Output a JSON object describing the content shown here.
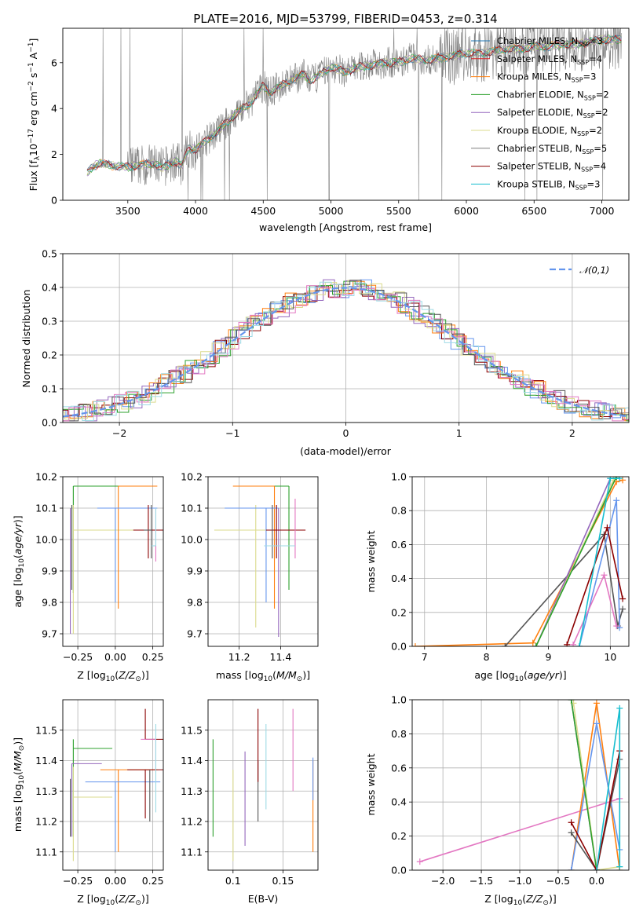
{
  "chart_data": [
    {
      "id": "spectrum",
      "type": "line",
      "title": "PLATE=2016, MJD=53799, FIBERID=0453, z=0.314",
      "xlabel": "wavelength [Angstrom, rest frame]",
      "ylabel": "Flux [f_λ 10^-17 erg cm^-2 s^-1 A^-1]",
      "xlim": [
        3020,
        7200
      ],
      "ylim": [
        0,
        7.5
      ],
      "xticks": [
        3500,
        4000,
        4500,
        5000,
        5500,
        6000,
        6500,
        7000
      ],
      "yticks": [
        0,
        2,
        4,
        6
      ],
      "grid": false,
      "legend_position": "top-right",
      "data_color": "#808080",
      "series": [
        {
          "name": "Chabrier MILES, N_SSP=3",
          "color": "#1f77b4"
        },
        {
          "name": "Salpeter MILES, N_SSP=4",
          "color": "#d62728"
        },
        {
          "name": "Kroupa MILES, N_SSP=3",
          "color": "#ff7f0e"
        },
        {
          "name": "Chabrier ELODIE, N_SSP=2",
          "color": "#2ca02c"
        },
        {
          "name": "Salpeter ELODIE, N_SSP=2",
          "color": "#9467bd"
        },
        {
          "name": "Kroupa ELODIE, N_SSP=2",
          "color": "#dbdb8d"
        },
        {
          "name": "Chabrier STELIB, N_SSP=5",
          "color": "#7f7f7f"
        },
        {
          "name": "Salpeter STELIB, N_SSP=4",
          "color": "#8b0000"
        },
        {
          "name": "Kroupa STELIB, N_SSP=3",
          "color": "#17becf"
        }
      ],
      "model_knots": {
        "x": [
          3200,
          3250,
          3300,
          3400,
          3500,
          3600,
          3700,
          3750,
          3850,
          3900,
          3950,
          4000,
          4100,
          4200,
          4300,
          4400,
          4500,
          4550,
          4600,
          4700,
          4800,
          4850,
          4900,
          5000,
          5100,
          5200,
          5300,
          5400,
          5500,
          5600,
          5700,
          5800,
          5900,
          6000,
          6100,
          6200,
          6300,
          6400,
          6500,
          6600,
          6700,
          6800,
          6900,
          7000
        ],
        "y": [
          1.2,
          1.5,
          1.6,
          1.5,
          1.45,
          1.55,
          1.6,
          1.4,
          1.7,
          1.5,
          2.3,
          2.2,
          2.7,
          3.2,
          3.8,
          4.2,
          5.0,
          4.7,
          4.9,
          5.2,
          5.5,
          5.2,
          5.4,
          5.8,
          5.6,
          5.8,
          5.9,
          6.0,
          6.0,
          6.2,
          6.1,
          6.2,
          6.3,
          6.4,
          6.4,
          6.5,
          6.6,
          6.6,
          6.7,
          6.7,
          6.8,
          6.8,
          6.9,
          7.0
        ]
      }
    },
    {
      "id": "residuals",
      "type": "histogram",
      "xlabel": "(data-model)/error",
      "ylabel": "Normed distribution",
      "xlim": [
        -2.5,
        2.5
      ],
      "ylim": [
        0,
        0.5
      ],
      "xticks": [
        -2,
        -1,
        0,
        1,
        2
      ],
      "yticks": [
        0.0,
        0.1,
        0.2,
        0.3,
        0.4,
        0.5
      ],
      "grid": true,
      "legend_position": "top-right",
      "reference_curve": {
        "name": "𝒩(0,1)",
        "color": "#6495ed",
        "style": "dashed"
      },
      "bin_width": 0.1
    },
    {
      "id": "age-vs-Z",
      "type": "scatter",
      "xlabel": "Z [log10(Z/Z⊙)]",
      "ylabel": "age [log10(age/yr)]",
      "xlim": [
        -0.35,
        0.32
      ],
      "ylim": [
        9.66,
        10.2
      ],
      "xticks": [
        -0.25,
        0.0,
        0.25
      ],
      "xticklabels": [
        "−0.25",
        "0.00",
        "0.25"
      ],
      "yticks": [
        9.7,
        9.8,
        9.9,
        10.0,
        10.1,
        10.2
      ],
      "grid": true,
      "points": [
        {
          "x": -0.28,
          "y": 10.17,
          "xerr": [
            0.0,
            0.5
          ],
          "yerr": [
            0.34,
            0.0
          ],
          "color": "#2ca02c"
        },
        {
          "x": -0.3,
          "y": 10.1,
          "xerr": [
            0.0,
            0.0
          ],
          "yerr": [
            0.4,
            0.0
          ],
          "color": "#9467bd"
        },
        {
          "x": -0.28,
          "y": 10.03,
          "xerr": [
            0.0,
            0.6
          ],
          "yerr": [
            0.33,
            0.08
          ],
          "color": "#dbdb8d"
        },
        {
          "x": -0.29,
          "y": 10.03,
          "xerr": [
            0.0,
            0.0
          ],
          "yerr": [
            0.19,
            0.08
          ],
          "color": "#555555"
        },
        {
          "x": 0.02,
          "y": 10.17,
          "xerr": [
            0.0,
            0.26
          ],
          "yerr": [
            0.39,
            0.0
          ],
          "color": "#ff7f0e"
        },
        {
          "x": 0.0,
          "y": 10.1,
          "xerr": [
            0.12,
            0.28
          ],
          "yerr": [
            0.3,
            0.0
          ],
          "color": "#6495ed"
        },
        {
          "x": 0.22,
          "y": 10.03,
          "xerr": [
            0.1,
            0.12
          ],
          "yerr": [
            0.09,
            0.08
          ],
          "color": "#8b0000"
        },
        {
          "x": 0.24,
          "y": 10.03,
          "xerr": [
            0.05,
            0.0
          ],
          "yerr": [
            0.09,
            0.08
          ],
          "color": "#555555"
        },
        {
          "x": 0.27,
          "y": 9.98,
          "xerr": [
            0.0,
            0.0
          ],
          "yerr": [
            0.05,
            0.12
          ],
          "color": "#e377c2"
        },
        {
          "x": 0.27,
          "y": 9.98,
          "xerr": [
            0.03,
            0.0
          ],
          "yerr": [
            0.0,
            0.12
          ],
          "color": "#9edae5"
        }
      ]
    },
    {
      "id": "age-vs-mass",
      "type": "scatter",
      "xlabel": "mass [log10(M/M⊙)]",
      "ylabel": "",
      "xlim": [
        11.05,
        11.58
      ],
      "ylim": [
        9.66,
        10.2
      ],
      "xticks": [
        11.2,
        11.4
      ],
      "yticks": [
        9.7,
        9.8,
        9.9,
        10.0,
        10.1,
        10.2
      ],
      "grid": true,
      "points": [
        {
          "x": 11.44,
          "y": 10.17,
          "xerr": [
            0.15,
            0.0
          ],
          "yerr": [
            0.33,
            0.0
          ],
          "color": "#2ca02c"
        },
        {
          "x": 11.39,
          "y": 10.1,
          "xerr": [
            0.0,
            0.0
          ],
          "yerr": [
            0.41,
            0.0
          ],
          "color": "#9467bd"
        },
        {
          "x": 11.28,
          "y": 10.03,
          "xerr": [
            0.2,
            0.1
          ],
          "yerr": [
            0.31,
            0.08
          ],
          "color": "#dbdb8d"
        },
        {
          "x": 11.37,
          "y": 10.17,
          "xerr": [
            0.2,
            0.0
          ],
          "yerr": [
            0.39,
            0.0
          ],
          "color": "#ff7f0e"
        },
        {
          "x": 11.33,
          "y": 10.1,
          "xerr": [
            0.2,
            0.06
          ],
          "yerr": [
            0.3,
            0.0
          ],
          "color": "#6495ed"
        },
        {
          "x": 11.38,
          "y": 10.03,
          "xerr": [
            0.05,
            0.14
          ],
          "yerr": [
            0.09,
            0.08
          ],
          "color": "#8b0000"
        },
        {
          "x": 11.36,
          "y": 10.03,
          "xerr": [
            0.0,
            0.0
          ],
          "yerr": [
            0.09,
            0.08
          ],
          "color": "#555555"
        },
        {
          "x": 11.47,
          "y": 10.0,
          "xerr": [
            0.0,
            0.0
          ],
          "yerr": [
            0.06,
            0.13
          ],
          "color": "#e377c2"
        },
        {
          "x": 11.4,
          "y": 9.98,
          "xerr": [
            0.08,
            0.07
          ],
          "yerr": [
            0.0,
            0.0
          ],
          "color": "#9edae5"
        }
      ]
    },
    {
      "id": "weight-vs-age",
      "type": "line",
      "xlabel": "age [log10(age/yr)]",
      "ylabel": "mass weight",
      "xlim": [
        6.8,
        10.3
      ],
      "ylim": [
        0,
        1.0
      ],
      "xticks": [
        7,
        8,
        9,
        10
      ],
      "yticks": [
        0.0,
        0.2,
        0.4,
        0.6,
        0.8,
        1.0
      ],
      "grid": true,
      "series": [
        {
          "color": "#ff7f0e",
          "x": [
            6.85,
            8.75,
            10.1,
            10.2
          ],
          "y": [
            0.0,
            0.02,
            0.97,
            0.98
          ]
        },
        {
          "color": "#555555",
          "x": [
            8.3,
            9.9,
            10.12,
            10.2
          ],
          "y": [
            0.0,
            0.66,
            0.12,
            0.22
          ]
        },
        {
          "color": "#9467bd",
          "x": [
            8.8,
            10.0
          ],
          "y": [
            0.0,
            0.99
          ]
        },
        {
          "color": "#dbdb8d",
          "x": [
            8.8,
            10.05
          ],
          "y": [
            0.0,
            0.98
          ]
        },
        {
          "color": "#2ca02c",
          "x": [
            8.8,
            10.1
          ],
          "y": [
            0.0,
            1.0
          ]
        },
        {
          "color": "#6495ed",
          "x": [
            9.5,
            10.1,
            10.15
          ],
          "y": [
            0.0,
            0.86,
            0.11
          ]
        },
        {
          "color": "#8b0000",
          "x": [
            9.3,
            9.95,
            10.2
          ],
          "y": [
            0.01,
            0.7,
            0.28
          ]
        },
        {
          "color": "#e377c2",
          "x": [
            9.4,
            9.9,
            10.1
          ],
          "y": [
            0.01,
            0.42,
            0.12
          ]
        },
        {
          "color": "#17becf",
          "x": [
            9.5,
            10.0,
            10.15
          ],
          "y": [
            0.0,
            0.99,
            0.99
          ]
        }
      ]
    },
    {
      "id": "mass-vs-Z",
      "type": "scatter",
      "xlabel": "Z [log10(Z/Z⊙)]",
      "ylabel": "mass [log10(M/M⊙)]",
      "xlim": [
        -0.35,
        0.32
      ],
      "ylim": [
        11.04,
        11.6
      ],
      "xticks": [
        -0.25,
        0.0,
        0.25
      ],
      "xticklabels": [
        "−0.25",
        "0.00",
        "0.25"
      ],
      "yticks": [
        11.1,
        11.2,
        11.3,
        11.4,
        11.5
      ],
      "grid": true,
      "points": [
        {
          "x": -0.28,
          "y": 11.44,
          "xerr": [
            0.0,
            0.26
          ],
          "yerr": [
            0.29,
            0.03
          ],
          "color": "#2ca02c"
        },
        {
          "x": -0.29,
          "y": 11.39,
          "xerr": [
            0.0,
            0.2
          ],
          "yerr": [
            0.24,
            0.0
          ],
          "color": "#9467bd"
        },
        {
          "x": -0.28,
          "y": 11.28,
          "xerr": [
            0.0,
            0.26
          ],
          "yerr": [
            0.21,
            0.1
          ],
          "color": "#dbdb8d"
        },
        {
          "x": -0.3,
          "y": 11.34,
          "xerr": [
            0.0,
            0.0
          ],
          "yerr": [
            0.19,
            0.0
          ],
          "color": "#555555"
        },
        {
          "x": 0.02,
          "y": 11.37,
          "xerr": [
            0.12,
            0.26
          ],
          "yerr": [
            0.27,
            0.0
          ],
          "color": "#ff7f0e"
        },
        {
          "x": 0.0,
          "y": 11.33,
          "xerr": [
            0.2,
            0.3
          ],
          "yerr": [
            0.23,
            0.0
          ],
          "color": "#6495ed"
        },
        {
          "x": 0.2,
          "y": 11.47,
          "xerr": [
            0.0,
            0.12
          ],
          "yerr": [
            0.0,
            0.1
          ],
          "color": "#8b0000"
        },
        {
          "x": 0.2,
          "y": 11.37,
          "xerr": [
            0.12,
            0.12
          ],
          "yerr": [
            0.16,
            0.0
          ],
          "color": "#8b0000"
        },
        {
          "x": 0.23,
          "y": 11.37,
          "xerr": [
            0.0,
            0.0
          ],
          "yerr": [
            0.17,
            0.0
          ],
          "color": "#555555"
        },
        {
          "x": 0.27,
          "y": 11.47,
          "xerr": [
            0.1,
            0.0
          ],
          "yerr": [
            0.1,
            0.0
          ],
          "color": "#e377c2"
        },
        {
          "x": 0.27,
          "y": 11.33,
          "xerr": [
            0.0,
            0.0
          ],
          "yerr": [
            0.1,
            0.19
          ],
          "color": "#9edae5"
        }
      ]
    },
    {
      "id": "mass-vs-EBV",
      "type": "scatter",
      "xlabel": "E(B-V)",
      "ylabel": "",
      "xlim": [
        0.075,
        0.185
      ],
      "ylim": [
        11.04,
        11.6
      ],
      "xticks": [
        0.1,
        0.15
      ],
      "yticks": [
        11.1,
        11.2,
        11.3,
        11.4,
        11.5
      ],
      "grid": true,
      "vbars": [
        {
          "x": 0.08,
          "y0": 11.15,
          "y1": 11.47,
          "color": "#2ca02c"
        },
        {
          "x": 0.1,
          "y0": 11.07,
          "y1": 11.37,
          "color": "#dbdb8d"
        },
        {
          "x": 0.112,
          "y0": 11.12,
          "y1": 11.43,
          "color": "#9467bd"
        },
        {
          "x": 0.125,
          "y0": 11.2,
          "y1": 11.4,
          "color": "#555555"
        },
        {
          "x": 0.125,
          "y0": 11.33,
          "y1": 11.57,
          "color": "#8b0000"
        },
        {
          "x": 0.133,
          "y0": 11.24,
          "y1": 11.52,
          "color": "#9edae5"
        },
        {
          "x": 0.16,
          "y0": 11.3,
          "y1": 11.57,
          "color": "#e377c2"
        },
        {
          "x": 0.18,
          "y0": 11.1,
          "y1": 11.4,
          "color": "#ff7f0e"
        },
        {
          "x": 0.18,
          "y0": 11.27,
          "y1": 11.41,
          "color": "#6495ed"
        }
      ]
    },
    {
      "id": "weight-vs-Z",
      "type": "line",
      "xlabel": "Z [log10(Z/Z⊙)]",
      "ylabel": "mass weight",
      "xlim": [
        -2.4,
        0.42
      ],
      "ylim": [
        0,
        1.0
      ],
      "xticks": [
        -2.0,
        -1.5,
        -1.0,
        -0.5,
        0.0
      ],
      "xticklabels": [
        "−2.0",
        "−1.5",
        "−1.0",
        "−0.5",
        "0.0"
      ],
      "yticks": [
        0.0,
        0.2,
        0.4,
        0.6,
        0.8,
        1.0
      ],
      "grid": true,
      "series": [
        {
          "color": "#e377c2",
          "x": [
            -2.3,
            0.3
          ],
          "y": [
            0.05,
            0.42
          ]
        },
        {
          "color": "#ff7f0e",
          "x": [
            -0.33,
            0.0,
            0.3
          ],
          "y": [
            0.0,
            0.98,
            0.0
          ]
        },
        {
          "color": "#6495ed",
          "x": [
            -0.33,
            0.0,
            0.3
          ],
          "y": [
            0.0,
            0.86,
            0.12
          ]
        },
        {
          "color": "#9467bd",
          "x": [
            -0.33,
            0.0
          ],
          "y": [
            1.0,
            0.0
          ]
        },
        {
          "color": "#dbdb8d",
          "x": [
            -0.3,
            0.0,
            0.3
          ],
          "y": [
            0.98,
            0.0,
            0.02
          ]
        },
        {
          "color": "#2ca02c",
          "x": [
            -0.33,
            0.0
          ],
          "y": [
            1.0,
            0.0
          ]
        },
        {
          "color": "#555555",
          "x": [
            -0.33,
            0.0,
            0.3
          ],
          "y": [
            0.22,
            0.0,
            0.65
          ]
        },
        {
          "color": "#8b0000",
          "x": [
            -0.33,
            0.0,
            0.3
          ],
          "y": [
            0.28,
            0.0,
            0.7
          ]
        },
        {
          "color": "#17becf",
          "x": [
            0.0,
            0.3,
            0.3
          ],
          "y": [
            0.0,
            0.95,
            0.02
          ]
        }
      ]
    }
  ]
}
